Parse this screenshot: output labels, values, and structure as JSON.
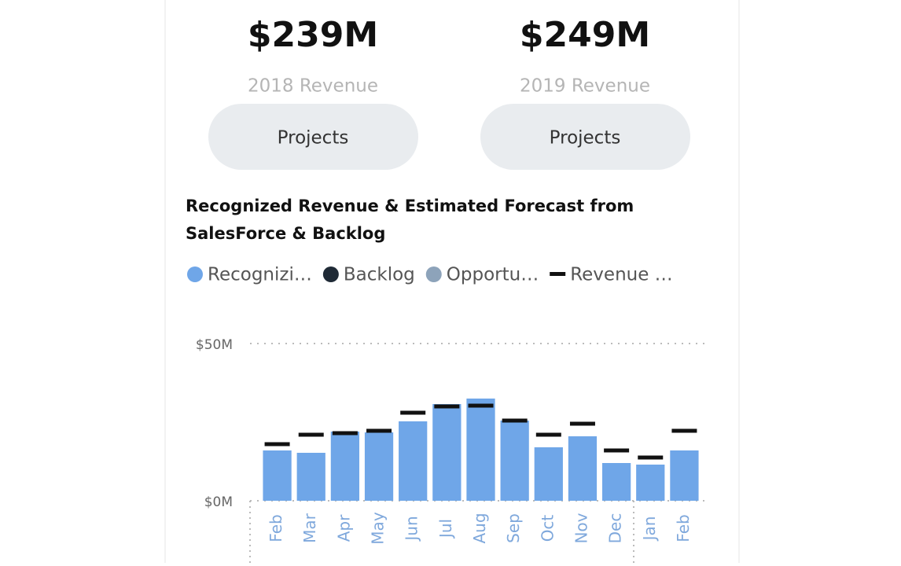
{
  "kpis": [
    {
      "value": "$239M",
      "label": "2018 Revenue",
      "button": "Projects"
    },
    {
      "value": "$249M",
      "label": "2019 Revenue",
      "button": "Projects"
    }
  ],
  "chart_data": {
    "type": "bar",
    "title_lines": [
      "Recognized Revenue & Estimated Forecast from",
      "SalesForce & Backlog"
    ],
    "categories": [
      "Feb",
      "Mar",
      "Apr",
      "May",
      "Jun",
      "Jul",
      "Aug",
      "Sep",
      "Oct",
      "Nov",
      "Dec",
      "Jan",
      "Feb"
    ],
    "series": [
      {
        "name": "Recognizi…",
        "color": "#6fa6e8",
        "values": [
          16,
          15.25,
          22,
          21.75,
          25.25,
          30.75,
          32.5,
          25.5,
          17,
          20.5,
          12,
          11.5,
          16
        ]
      },
      {
        "name": "Backlog",
        "color": "#1f2a36",
        "values": [
          0,
          0,
          0,
          0,
          0,
          0,
          0,
          0,
          0,
          0,
          0,
          0,
          0
        ]
      },
      {
        "name": "Opportu…",
        "color": "#8da3ba",
        "values": [
          0,
          0,
          0,
          0,
          0,
          0,
          0,
          0,
          0,
          0,
          0,
          0,
          0
        ]
      },
      {
        "name": "Revenue …",
        "color": "#111111",
        "type": "dash",
        "values": [
          18,
          21,
          21.5,
          22.25,
          28,
          30,
          30.25,
          25.5,
          21,
          24.5,
          16,
          13.75,
          22.25
        ]
      }
    ],
    "stacked": true,
    "ylim": [
      0,
      50
    ],
    "yticks": [
      {
        "value": 0,
        "label": "$0M"
      },
      {
        "value": 50,
        "label": "$50M"
      }
    ],
    "grid": true
  }
}
